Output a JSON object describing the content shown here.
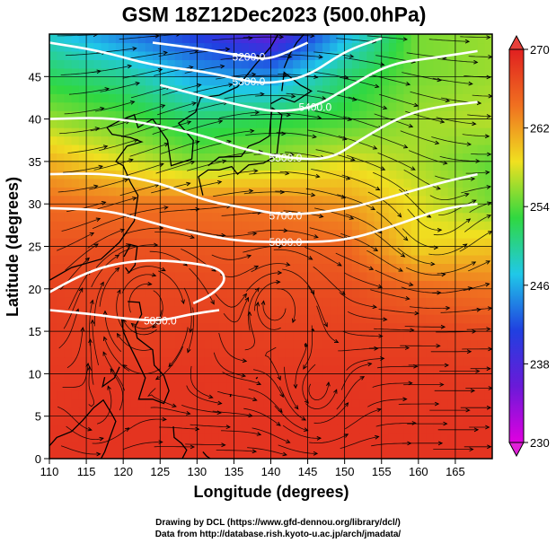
{
  "colors": {
    "background": "#ffffff",
    "contour": "#ffffff",
    "grid": "#000000",
    "coast": "#000000",
    "streamline": "#000000"
  },
  "chart_data": {
    "type": "heatmap",
    "title": "GSM 18Z12Dec2023 (500.0hPa)",
    "xlabel": "Longitude (degrees)",
    "ylabel": "Latitude  (degrees)",
    "xlim": [
      110,
      170
    ],
    "ylim": [
      0,
      50
    ],
    "xticks": [
      "110",
      "115",
      "120",
      "125",
      "130",
      "135",
      "140",
      "145",
      "150",
      "155",
      "160",
      "165"
    ],
    "yticks": [
      "0",
      "5",
      "10",
      "15",
      "20",
      "25",
      "30",
      "35",
      "40",
      "45"
    ],
    "grid": true,
    "colorbar": {
      "min": 230,
      "max": 270,
      "ticks": [
        "230",
        "238",
        "246",
        "254",
        "262",
        "270"
      ],
      "colormap": [
        "#e000e0",
        "#6a1ad8",
        "#2040e0",
        "#20c8e8",
        "#30d840",
        "#f0e020",
        "#f07020",
        "#e02020"
      ]
    },
    "temperature_grid": {
      "lon": [
        110,
        120,
        130,
        140,
        150,
        160,
        170
      ],
      "lat": [
        0,
        5,
        10,
        15,
        20,
        25,
        30,
        35,
        40,
        45,
        50
      ],
      "values": [
        [
          268.6,
          268.6,
          268.6,
          268.6,
          268.6,
          268.6,
          268.6
        ],
        [
          268.4,
          268.6,
          268.4,
          268.6,
          268.6,
          268.4,
          268.6
        ],
        [
          268.2,
          268.4,
          268.4,
          268.2,
          268.4,
          268.2,
          268.0
        ],
        [
          268.0,
          267.4,
          267.8,
          267.6,
          267.6,
          267.4,
          267.0
        ],
        [
          267.6,
          267.2,
          267.2,
          266.8,
          266.8,
          265.0,
          264.0
        ],
        [
          266.4,
          266.6,
          266.0,
          265.8,
          265.2,
          259.0,
          260.0
        ],
        [
          264.6,
          264.0,
          264.2,
          263.8,
          262.2,
          258.2,
          255.0
        ],
        [
          261.0,
          258.0,
          255.2,
          256.2,
          258.2,
          256.5,
          254.2
        ],
        [
          256.0,
          254.2,
          251.4,
          252.2,
          253.4,
          256.2,
          257.0
        ],
        [
          252.0,
          250.2,
          245.6,
          245.0,
          251.2,
          255.0,
          256.0
        ],
        [
          248.0,
          244.0,
          241.0,
          236.4,
          246.0,
          255.0,
          256.0
        ]
      ]
    },
    "contours": [
      {
        "label": "5200.0",
        "points": [
          [
            124,
            49
          ],
          [
            131,
            48.2
          ],
          [
            137,
            47.3
          ],
          [
            140,
            47
          ],
          [
            145,
            49
          ]
        ]
      },
      {
        "label": "5300.0",
        "points": [
          [
            110,
            49
          ],
          [
            117,
            48
          ],
          [
            124,
            46.3
          ],
          [
            131,
            45.6
          ],
          [
            137,
            44.4
          ],
          [
            140,
            44.2
          ],
          [
            145,
            45
          ],
          [
            150,
            48
          ],
          [
            155,
            49.5
          ]
        ]
      },
      {
        "label": "5400.0",
        "points": [
          [
            125,
            44
          ],
          [
            132,
            42.4
          ],
          [
            137,
            41.4
          ],
          [
            141,
            40.8
          ],
          [
            146,
            41.4
          ],
          [
            150,
            43.5
          ],
          [
            156,
            46.5
          ],
          [
            162,
            47.2
          ],
          [
            168,
            48
          ]
        ]
      },
      {
        "label": "5500.0",
        "points": [
          [
            110,
            40
          ],
          [
            118,
            40.2
          ],
          [
            125,
            39.2
          ],
          [
            131,
            38
          ],
          [
            136,
            36.5
          ],
          [
            142,
            35.4
          ],
          [
            148,
            35.2
          ],
          [
            152,
            37.5
          ],
          [
            158,
            40.5
          ],
          [
            163,
            41.5
          ],
          [
            168,
            42
          ]
        ]
      },
      {
        "label": "5700.0",
        "points": [
          [
            110,
            33.5
          ],
          [
            118,
            33.6
          ],
          [
            125,
            32.5
          ],
          [
            131,
            30.4
          ],
          [
            136,
            29.6
          ],
          [
            142,
            28.6
          ],
          [
            150,
            29.3
          ],
          [
            157,
            31
          ],
          [
            163,
            32.5
          ],
          [
            168,
            33.5
          ]
        ]
      },
      {
        "label": "5800.0",
        "points": [
          [
            110,
            29.5
          ],
          [
            118,
            29.3
          ],
          [
            125,
            27.5
          ],
          [
            131,
            26.3
          ],
          [
            136,
            25.6
          ],
          [
            142,
            25.5
          ],
          [
            150,
            25.6
          ],
          [
            157,
            27.5
          ],
          [
            163,
            29.4
          ],
          [
            168,
            30
          ]
        ]
      },
      {
        "label": "5850.0",
        "points": [
          [
            110,
            17.5
          ],
          [
            116,
            17
          ],
          [
            120,
            16.5
          ],
          [
            125,
            16.2
          ],
          [
            129,
            17
          ],
          [
            133,
            17.5
          ]
        ]
      },
      {
        "label": "",
        "points": [
          [
            110,
            19.6
          ],
          [
            114,
            21.5
          ],
          [
            118,
            22.8
          ],
          [
            123,
            23.4
          ],
          [
            128,
            23.2
          ],
          [
            133,
            22.5
          ],
          [
            134,
            21
          ],
          [
            132,
            19.3
          ],
          [
            129.5,
            18.3
          ]
        ]
      }
    ]
  },
  "credits": {
    "line1": "Drawing by DCL (https://www.gfd-dennou.org/library/dcl/)",
    "line2": "Data from http://database.rish.kyoto-u.ac.jp/arch/jmadata/"
  }
}
